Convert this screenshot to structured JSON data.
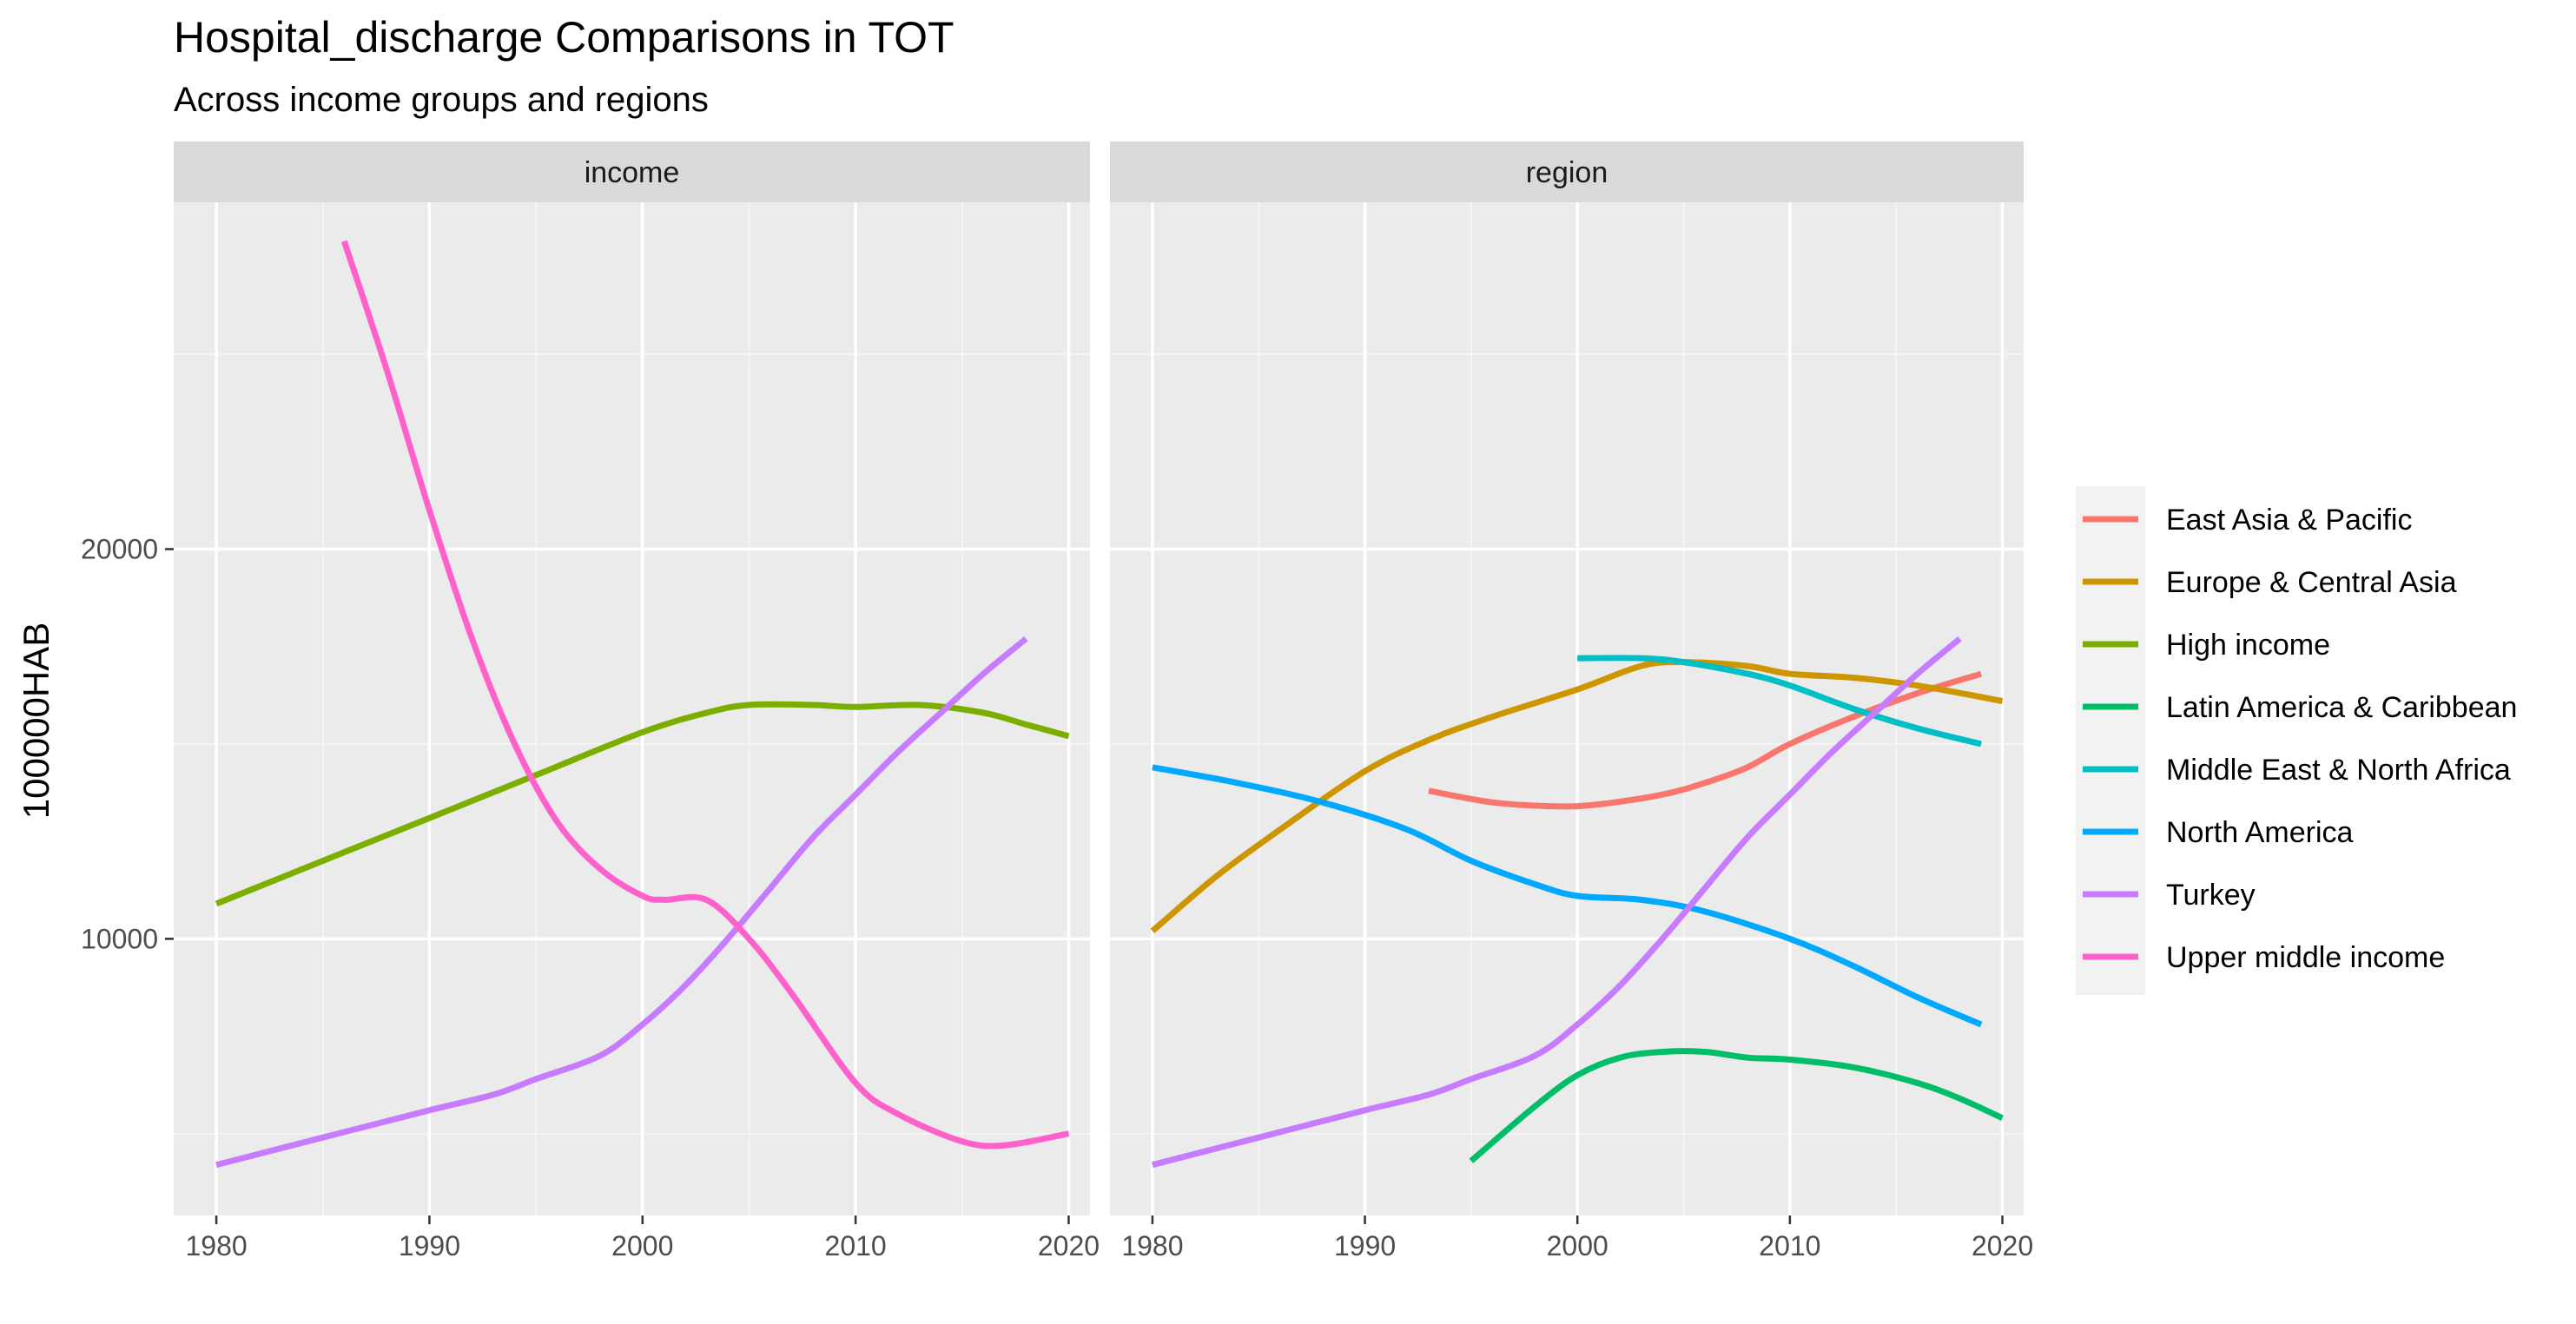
{
  "chart_data": {
    "type": "line",
    "title": "Hospital_discharge Comparisons in TOT",
    "subtitle": "Across income groups and regions",
    "xlabel": "",
    "ylabel": "100000HAB",
    "xlim": [
      1978,
      2021
    ],
    "ylim": [
      2900,
      28900
    ],
    "x_ticks": [
      1980,
      1990,
      2000,
      2010,
      2020
    ],
    "y_ticks": [
      10000,
      20000
    ],
    "grid": true,
    "legend": {
      "position": "right",
      "entries": [
        {
          "name": "East Asia & Pacific",
          "color": "#F8766D"
        },
        {
          "name": "Europe & Central Asia",
          "color": "#CD9600"
        },
        {
          "name": "High income",
          "color": "#7CAE00"
        },
        {
          "name": "Latin America & Caribbean",
          "color": "#00BE67"
        },
        {
          "name": "Middle East & North Africa",
          "color": "#00BFC4"
        },
        {
          "name": "North America",
          "color": "#00A9FF"
        },
        {
          "name": "Turkey",
          "color": "#C77CFF"
        },
        {
          "name": "Upper middle income",
          "color": "#FF61CC"
        }
      ]
    },
    "panels": [
      {
        "label": "income",
        "series": [
          {
            "name": "High income",
            "color": "#7CAE00",
            "x": [
              1980,
              1985,
              1990,
              1995,
              2000,
              2003,
              2005,
              2008,
              2010,
              2013,
              2016,
              2018,
              2020
            ],
            "y": [
              10900,
              12000,
              13100,
              14200,
              15300,
              15800,
              16000,
              16000,
              15950,
              16000,
              15800,
              15500,
              15200
            ]
          },
          {
            "name": "Turkey",
            "color": "#C77CFF",
            "x": [
              1980,
              1985,
              1990,
              1993,
              1995,
              1998,
              2000,
              2002,
              2004,
              2006,
              2008,
              2010,
              2012,
              2014,
              2016,
              2018
            ],
            "y": [
              4200,
              4900,
              5600,
              6000,
              6400,
              7000,
              7800,
              8800,
              10000,
              11300,
              12600,
              13700,
              14800,
              15800,
              16800,
              17700
            ]
          },
          {
            "name": "Upper middle income",
            "color": "#FF61CC",
            "x": [
              1986,
              1988,
              1990,
              1992,
              1994,
              1996,
              1998,
              2000,
              2001,
              2003,
              2005,
              2007,
              2010,
              2012,
              2015,
              2017,
              2020
            ],
            "y": [
              27900,
              24600,
              21000,
              17700,
              15000,
              13000,
              11800,
              11100,
              11000,
              11000,
              10000,
              8600,
              6300,
              5500,
              4800,
              4700,
              5000
            ]
          }
        ]
      },
      {
        "label": "region",
        "series": [
          {
            "name": "East Asia & Pacific",
            "color": "#F8766D",
            "x": [
              1993,
              1996,
              1999,
              2001,
              2004,
              2006,
              2008,
              2010,
              2013,
              2016,
              2019
            ],
            "y": [
              13800,
              13500,
              13400,
              13450,
              13700,
              14000,
              14400,
              15000,
              15700,
              16300,
              16800
            ]
          },
          {
            "name": "Europe & Central Asia",
            "color": "#CD9600",
            "x": [
              1980,
              1983,
              1986,
              1990,
              1993,
              1996,
              2000,
              2003,
              2005,
              2008,
              2010,
              2013,
              2016,
              2020
            ],
            "y": [
              10200,
              11600,
              12800,
              14300,
              15100,
              15700,
              16400,
              17000,
              17100,
              17000,
              16800,
              16700,
              16500,
              16100
            ]
          },
          {
            "name": "Latin America & Caribbean",
            "color": "#00BE67",
            "x": [
              1995,
              1998,
              2000,
              2002,
              2004,
              2006,
              2008,
              2010,
              2013,
              2016,
              2018,
              2020
            ],
            "y": [
              4300,
              5700,
              6500,
              6950,
              7100,
              7100,
              6950,
              6900,
              6700,
              6300,
              5900,
              5400
            ]
          },
          {
            "name": "Middle East & North Africa",
            "color": "#00BFC4",
            "x": [
              2000,
              2003,
              2005,
              2008,
              2010,
              2013,
              2016,
              2019
            ],
            "y": [
              17200,
              17200,
              17100,
              16800,
              16500,
              15900,
              15400,
              15000
            ]
          },
          {
            "name": "North America",
            "color": "#00A9FF",
            "x": [
              1980,
              1984,
              1988,
              1992,
              1995,
              1998,
              2000,
              2003,
              2006,
              2010,
              2013,
              2016,
              2019
            ],
            "y": [
              14400,
              14000,
              13500,
              12800,
              12000,
              11400,
              11100,
              11000,
              10700,
              10000,
              9300,
              8500,
              7800
            ]
          },
          {
            "name": "Turkey",
            "color": "#C77CFF",
            "x": [
              1980,
              1985,
              1990,
              1993,
              1995,
              1998,
              2000,
              2002,
              2004,
              2006,
              2008,
              2010,
              2012,
              2014,
              2016,
              2018
            ],
            "y": [
              4200,
              4900,
              5600,
              6000,
              6400,
              7000,
              7800,
              8800,
              10000,
              11300,
              12600,
              13700,
              14800,
              15800,
              16800,
              17700
            ]
          }
        ]
      }
    ]
  }
}
